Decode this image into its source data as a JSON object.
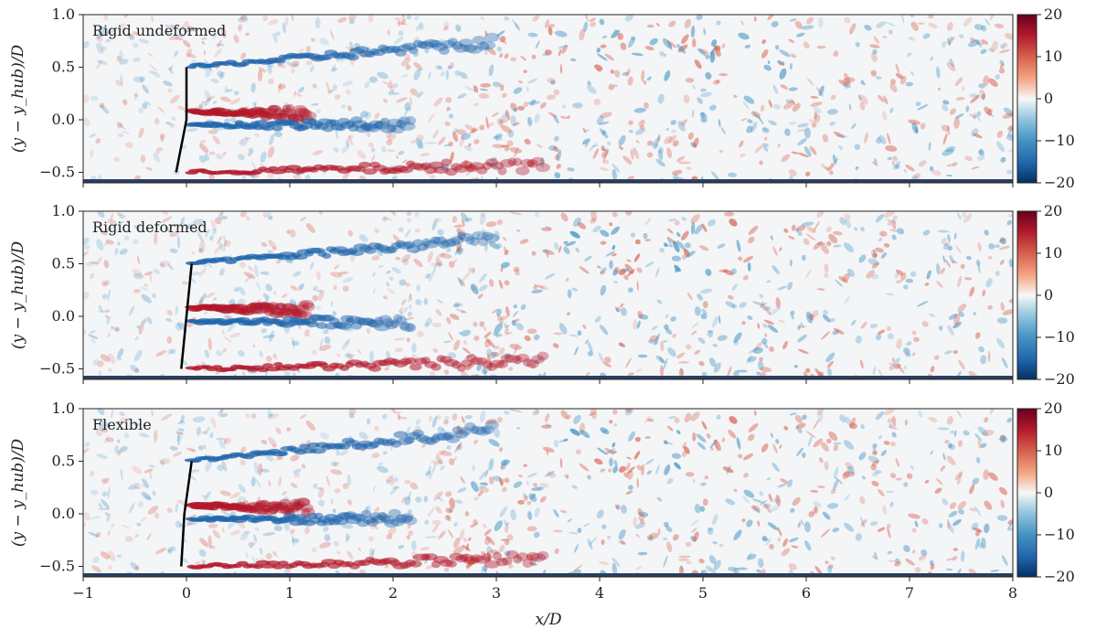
{
  "chart_data": {
    "type": "heatmap",
    "xlabel": "x/D",
    "ylabel": "(y − y_hub)/D",
    "xlim": [
      -1,
      8
    ],
    "ylim": [
      -0.6,
      1.0
    ],
    "x_ticks": [
      -1,
      0,
      1,
      2,
      3,
      4,
      5,
      6,
      7,
      8
    ],
    "x_tick_labels": [
      "−1",
      "0",
      "1",
      "2",
      "3",
      "4",
      "5",
      "6",
      "7",
      "8"
    ],
    "y_ticks": [
      -0.5,
      0.0,
      0.5,
      1.0
    ],
    "y_tick_labels": [
      "−0.5",
      "0.0",
      "0.5",
      "1.0"
    ],
    "colorbar": {
      "range": [
        -20,
        20
      ],
      "ticks": [
        20,
        10,
        0,
        -10,
        -20
      ],
      "tick_labels": [
        "20",
        "10",
        "0",
        "−10",
        "−20"
      ],
      "colormap": "RdBu_r",
      "colors": {
        "high": "#67001f",
        "mid": "#f7f7f7",
        "low": "#053061"
      }
    },
    "panels": [
      {
        "label": "Rigid undeformed",
        "blade": [
          [
            0.0,
            0.5
          ],
          [
            0.0,
            0.0
          ],
          [
            -0.1,
            -0.5
          ]
        ],
        "wake": [
          {
            "y": 0.5,
            "sign": -1,
            "x_end": 3.0,
            "slope": 0.08
          },
          {
            "y": 0.08,
            "sign": 1,
            "x_end": 1.2,
            "slope": -0.02
          },
          {
            "y": -0.05,
            "sign": -1,
            "x_end": 2.2,
            "slope": 0.0
          },
          {
            "y": -0.5,
            "sign": 1,
            "x_end": 3.5,
            "slope": 0.02
          }
        ]
      },
      {
        "label": "Rigid deformed",
        "blade": [
          [
            0.05,
            0.5
          ],
          [
            0.0,
            0.0
          ],
          [
            -0.05,
            -0.5
          ]
        ],
        "wake": [
          {
            "y": 0.5,
            "sign": -1,
            "x_end": 3.0,
            "slope": 0.08
          },
          {
            "y": 0.08,
            "sign": 1,
            "x_end": 1.2,
            "slope": -0.02
          },
          {
            "y": -0.05,
            "sign": -1,
            "x_end": 2.2,
            "slope": 0.0
          },
          {
            "y": -0.5,
            "sign": 1,
            "x_end": 3.5,
            "slope": 0.02
          }
        ]
      },
      {
        "label": "Flexible",
        "blade": [
          [
            0.05,
            0.5
          ],
          [
            -0.02,
            0.0
          ],
          [
            -0.05,
            -0.5
          ]
        ],
        "wake": [
          {
            "y": 0.5,
            "sign": -1,
            "x_end": 3.0,
            "slope": 0.1
          },
          {
            "y": 0.08,
            "sign": 1,
            "x_end": 1.2,
            "slope": -0.02
          },
          {
            "y": -0.05,
            "sign": -1,
            "x_end": 2.2,
            "slope": 0.0
          },
          {
            "y": -0.5,
            "sign": 1,
            "x_end": 3.5,
            "slope": 0.02
          }
        ]
      }
    ]
  }
}
